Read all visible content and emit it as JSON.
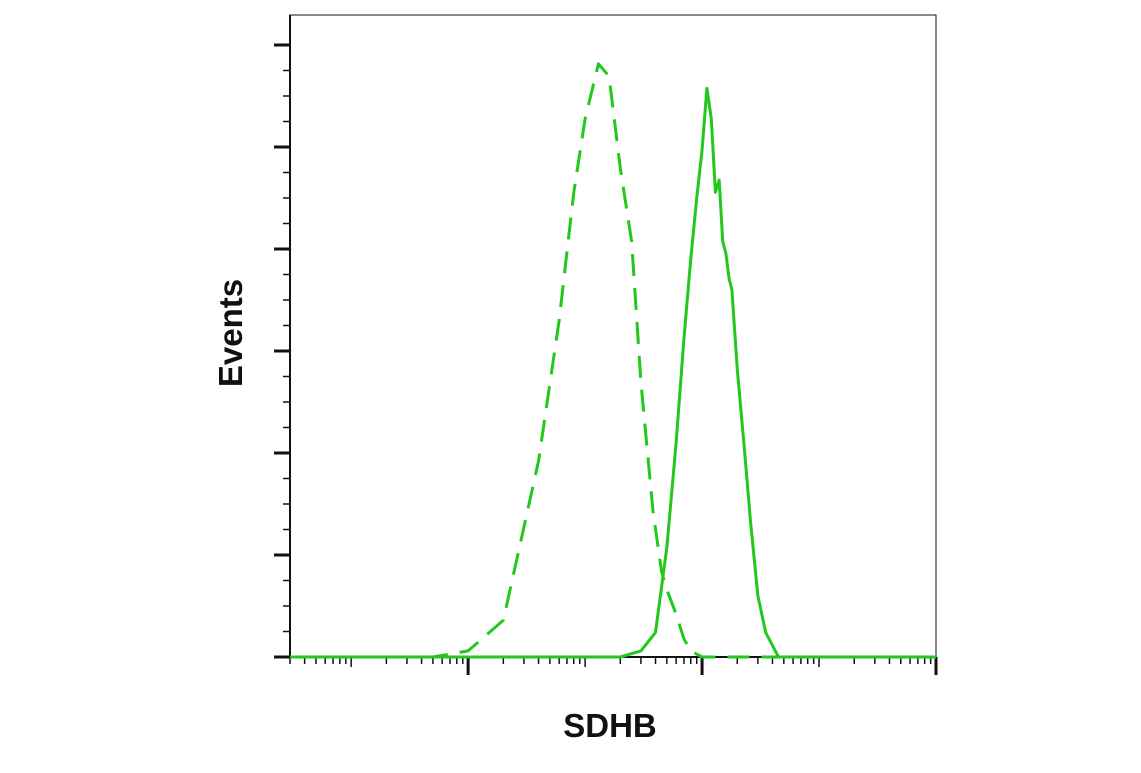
{
  "chart_data": {
    "type": "line",
    "title": "",
    "xlabel": "SDHB",
    "ylabel": "Events",
    "x_scale": "log",
    "xlim": [
      0.3,
      100000
    ],
    "ylim": [
      0,
      1.05
    ],
    "grid": false,
    "legend": "none",
    "colors": {
      "series": "#22c91c",
      "axis": "#111111",
      "background": "#ffffff"
    },
    "series": [
      {
        "line_style": "dashed",
        "x": [
          0.3,
          2,
          5,
          10,
          20,
          40,
          60,
          80,
          100,
          130,
          160,
          200,
          250,
          300,
          380,
          450,
          500,
          600,
          700,
          800,
          1000,
          1200,
          1500,
          1800,
          2000,
          2500,
          5000,
          20000,
          100000
        ],
        "values": [
          0.0,
          0.0,
          0.0,
          0.01,
          0.06,
          0.32,
          0.55,
          0.76,
          0.88,
          0.97,
          0.95,
          0.8,
          0.68,
          0.45,
          0.24,
          0.14,
          0.11,
          0.07,
          0.03,
          0.01,
          0.0,
          0.0,
          0.0,
          0.0,
          0.0,
          0.0,
          0.0,
          0.0,
          0.0
        ]
      },
      {
        "line_style": "solid",
        "x": [
          0.3,
          100,
          200,
          300,
          400,
          500,
          600,
          700,
          800,
          900,
          1000,
          1100,
          1200,
          1300,
          1400,
          1500,
          1600,
          1700,
          1800,
          2000,
          2300,
          2600,
          3000,
          3500,
          4500,
          6000,
          10000,
          100000
        ],
        "values": [
          0.0,
          0.0,
          0.0,
          0.01,
          0.04,
          0.18,
          0.35,
          0.52,
          0.65,
          0.75,
          0.83,
          0.93,
          0.88,
          0.76,
          0.78,
          0.68,
          0.66,
          0.62,
          0.6,
          0.47,
          0.34,
          0.22,
          0.1,
          0.04,
          0.0,
          0.0,
          0.0,
          0.0
        ]
      }
    ]
  }
}
